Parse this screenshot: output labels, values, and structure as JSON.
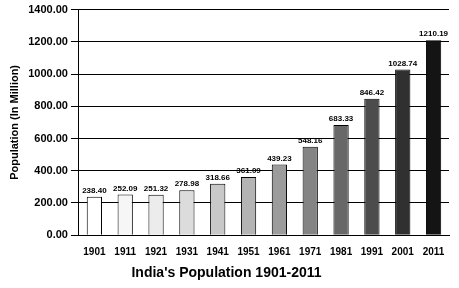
{
  "chart_data": {
    "type": "bar",
    "title": "India's Population 1901-2011",
    "y_label": "Population (In Million)",
    "categories": [
      "1901",
      "1911",
      "1921",
      "1931",
      "1941",
      "1951",
      "1961",
      "1971",
      "1981",
      "1991",
      "2001",
      "2011"
    ],
    "values": [
      238.4,
      252.09,
      251.32,
      278.98,
      318.66,
      361.09,
      439.23,
      548.16,
      683.33,
      846.42,
      1028.74,
      1210.19
    ],
    "value_labels": [
      "238.40",
      "252.09",
      "251.32",
      "278.98",
      "318.66",
      "361.09",
      "439.23",
      "548.16",
      "683.33",
      "846.42",
      "1028.74",
      "1210.19"
    ],
    "colors": [
      "#ffffff",
      "#f6f6f6",
      "#ececec",
      "#dcdcdc",
      "#c8c8c8",
      "#b4b4b4",
      "#9c9c9c",
      "#848484",
      "#686868",
      "#4c4c4c",
      "#303030",
      "#141414"
    ],
    "ylim": [
      0,
      1400
    ],
    "yticks": [
      {
        "value": 0,
        "label": "0.00"
      },
      {
        "value": 200,
        "label": "200.00"
      },
      {
        "value": 400,
        "label": "400.00"
      },
      {
        "value": 600,
        "label": "600.00"
      },
      {
        "value": 800,
        "label": "800.00"
      },
      {
        "value": 1000,
        "label": "1000.00"
      },
      {
        "value": 1200,
        "label": "1200.00"
      },
      {
        "value": 1400,
        "label": "1400.00"
      }
    ],
    "grid": true,
    "data_labels": true
  }
}
